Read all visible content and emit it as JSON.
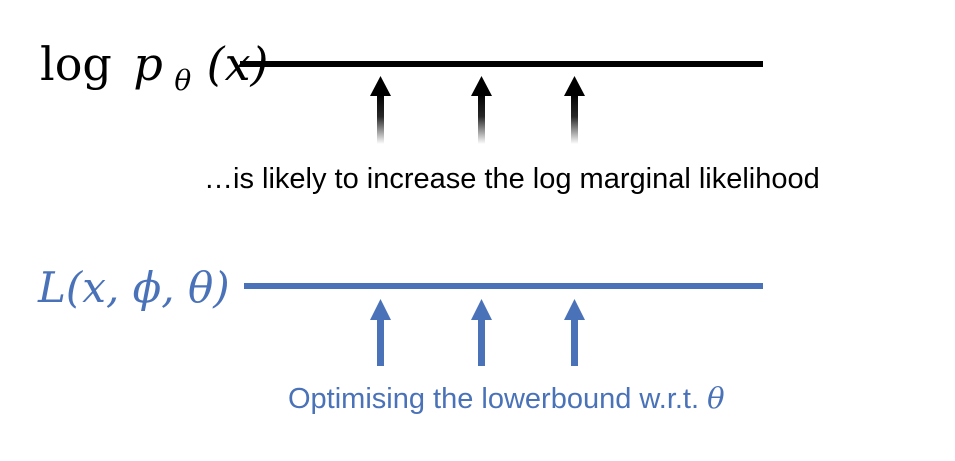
{
  "top": {
    "log_text": "log",
    "p_text": "p",
    "subscript": "θ",
    "arg_text": "(x)",
    "caption": "…is likely to increase the log marginal likelihood",
    "color": "#000000"
  },
  "bottom": {
    "expression": "L(x, ϕ, θ)",
    "caption_prefix": "Optimising the lowerbound w.r.t. ",
    "caption_symbol": "θ",
    "color": "#4a72b8"
  }
}
